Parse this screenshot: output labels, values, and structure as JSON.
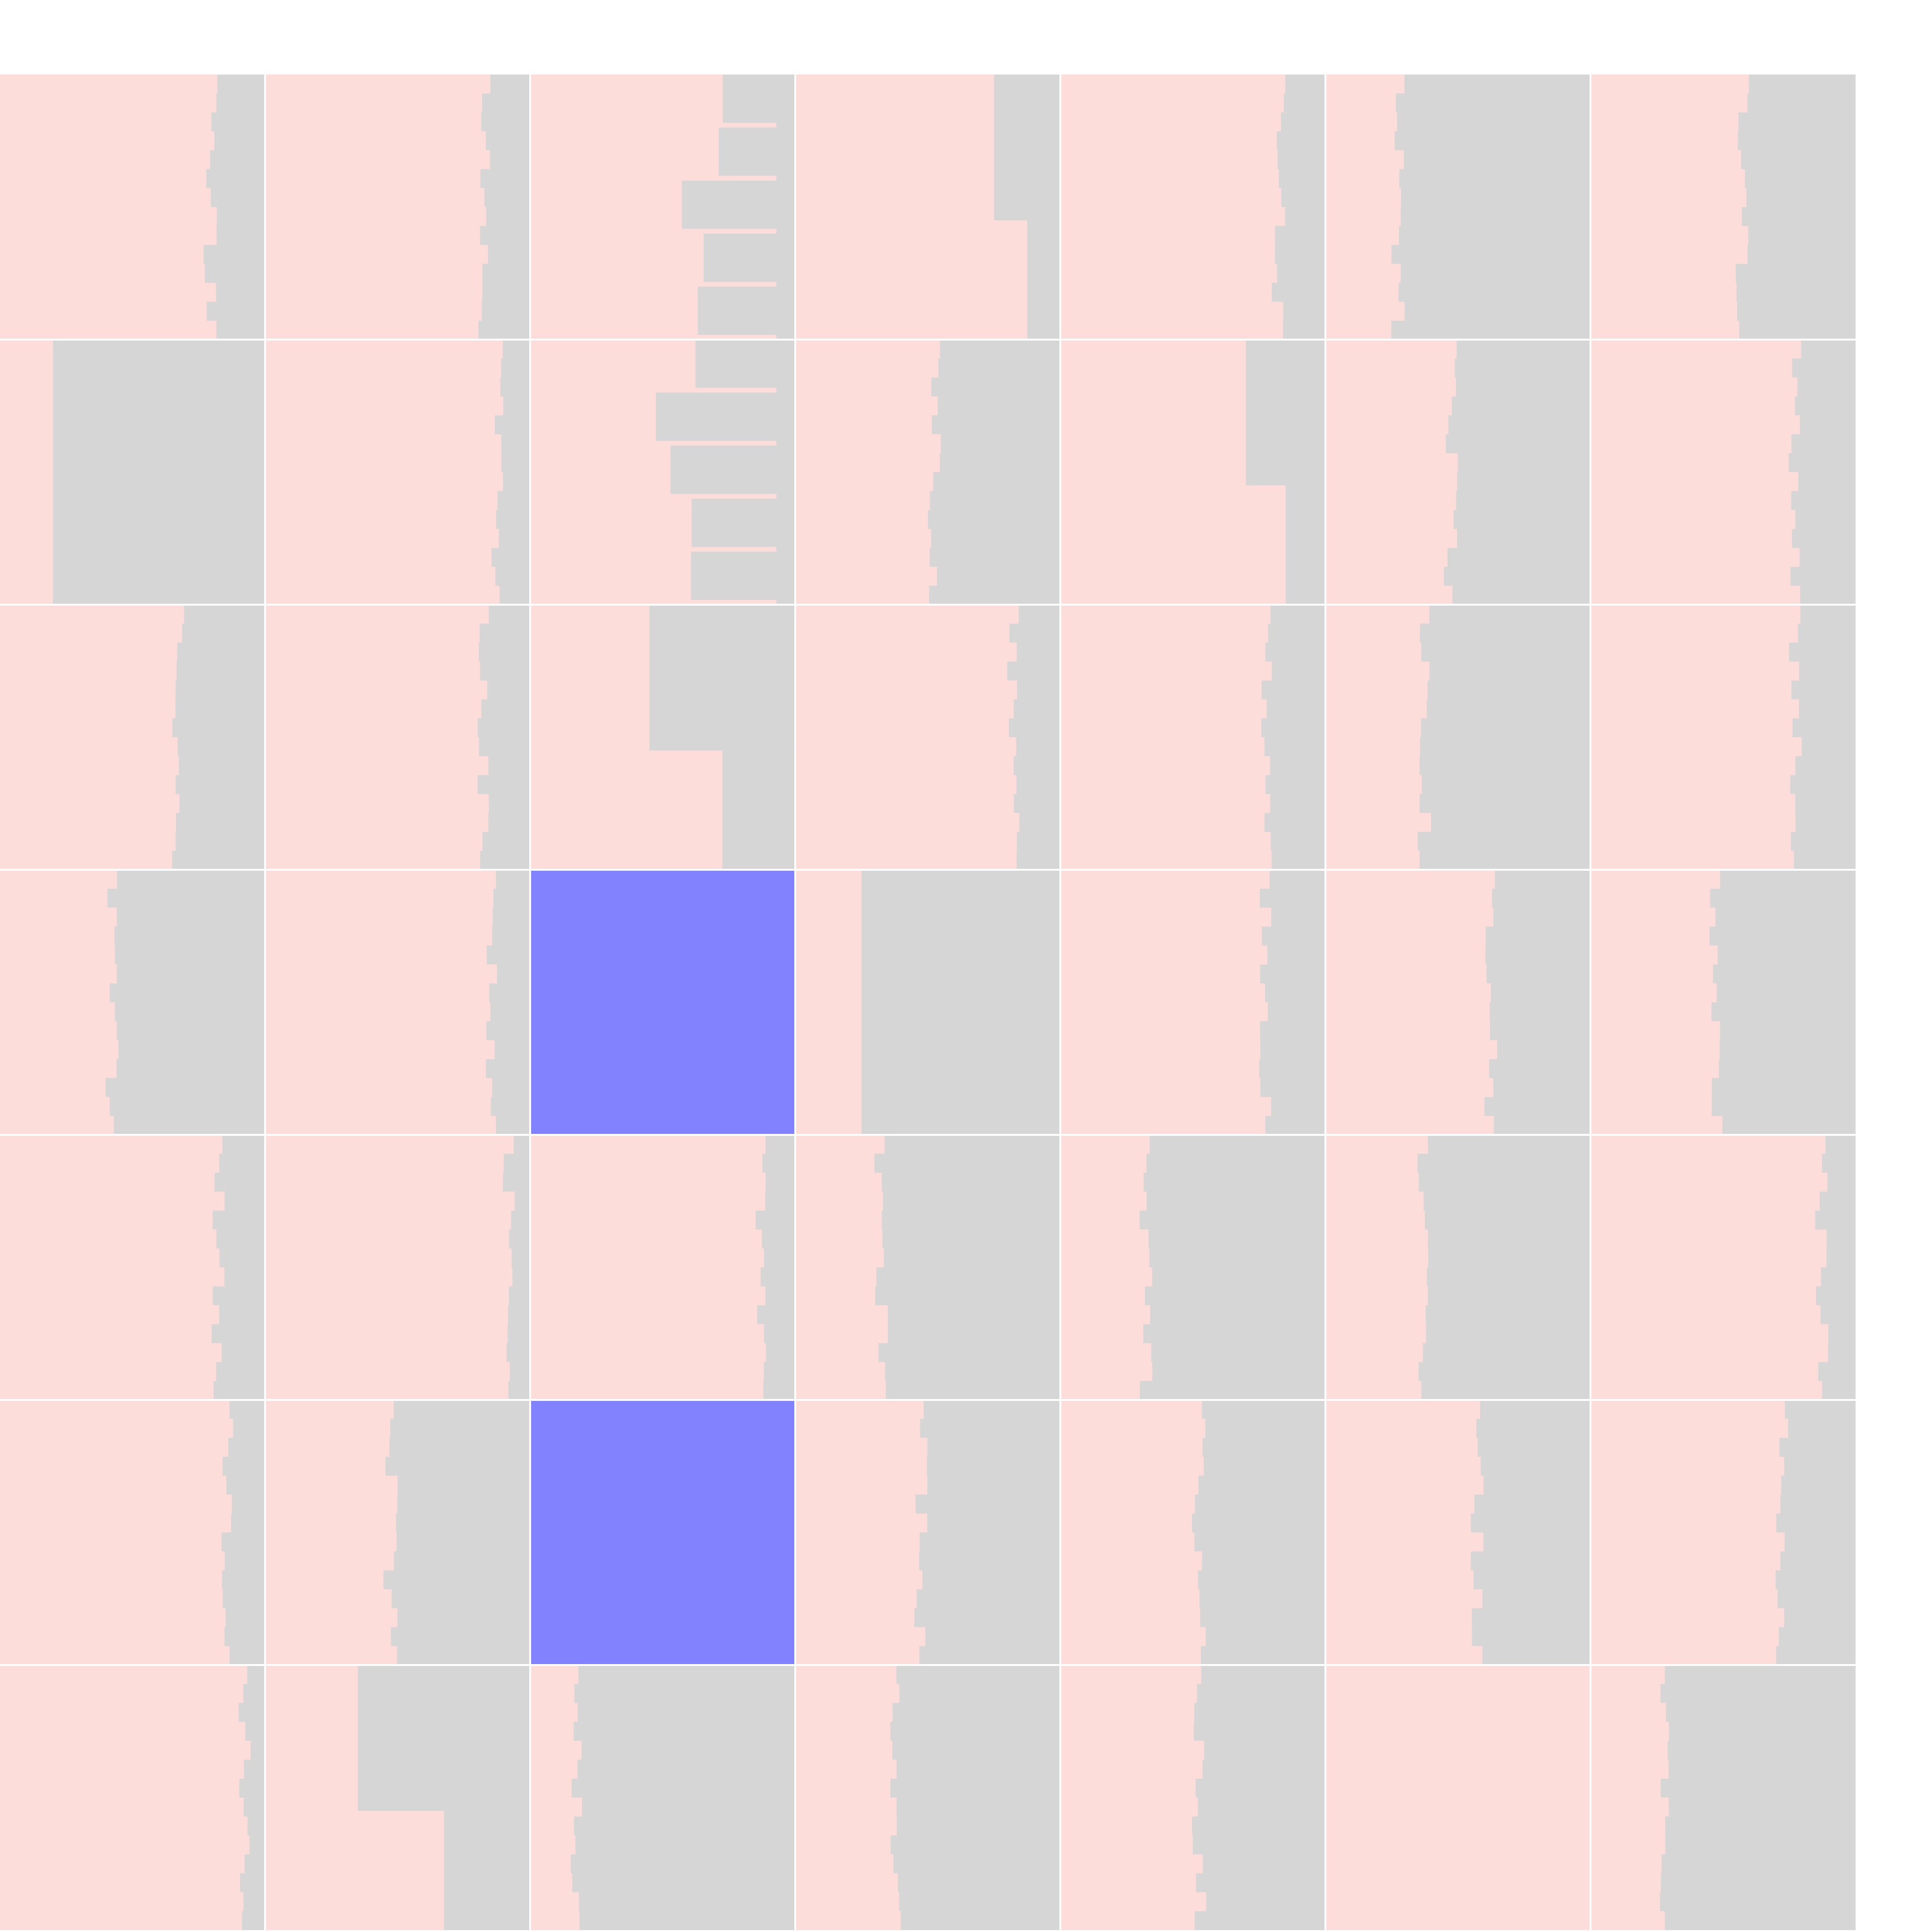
{
  "colors": {
    "background": "#ffffff",
    "tile_base": "#fdddda",
    "tile_fill": "#d6d6d6",
    "highlight": "#8282ff"
  },
  "grid": {
    "columns": 7,
    "rows": 7,
    "tiles": [
      {
        "col": 0,
        "row": 0,
        "gray_fraction": 0.18,
        "pattern": "right-strip"
      },
      {
        "col": 1,
        "row": 0,
        "gray_fraction": 0.15,
        "pattern": "right-strip"
      },
      {
        "col": 2,
        "row": 0,
        "gray_fraction": 0.45,
        "pattern": "right-blocks"
      },
      {
        "col": 3,
        "row": 0,
        "gray_fraction": 0.25,
        "pattern": "top-right"
      },
      {
        "col": 4,
        "row": 0,
        "gray_fraction": 0.15,
        "pattern": "right-strip"
      },
      {
        "col": 5,
        "row": 0,
        "gray_fraction": 0.7,
        "pattern": "right-major"
      },
      {
        "col": 6,
        "row": 0,
        "gray_fraction": 0.4,
        "pattern": "right-major"
      },
      {
        "col": 0,
        "row": 1,
        "gray_fraction": 0.8,
        "pattern": "left-pink"
      },
      {
        "col": 1,
        "row": 1,
        "gray_fraction": 0.1,
        "pattern": "right-strip"
      },
      {
        "col": 2,
        "row": 1,
        "gray_fraction": 0.6,
        "pattern": "right-blocks"
      },
      {
        "col": 3,
        "row": 1,
        "gray_fraction": 0.45,
        "pattern": "right-major"
      },
      {
        "col": 4,
        "row": 1,
        "gray_fraction": 0.3,
        "pattern": "top-right"
      },
      {
        "col": 5,
        "row": 1,
        "gray_fraction": 0.5,
        "pattern": "right-major"
      },
      {
        "col": 6,
        "row": 1,
        "gray_fraction": 0.2,
        "pattern": "right-strip"
      },
      {
        "col": 0,
        "row": 2,
        "gray_fraction": 0.3,
        "pattern": "right-major"
      },
      {
        "col": 1,
        "row": 2,
        "gray_fraction": 0.15,
        "pattern": "right-strip"
      },
      {
        "col": 2,
        "row": 2,
        "gray_fraction": 0.55,
        "pattern": "top-right"
      },
      {
        "col": 3,
        "row": 2,
        "gray_fraction": 0.15,
        "pattern": "right-strip"
      },
      {
        "col": 4,
        "row": 2,
        "gray_fraction": 0.2,
        "pattern": "right-strip"
      },
      {
        "col": 5,
        "row": 2,
        "gray_fraction": 0.6,
        "pattern": "right-major"
      },
      {
        "col": 6,
        "row": 2,
        "gray_fraction": 0.2,
        "pattern": "right-strip"
      },
      {
        "col": 0,
        "row": 3,
        "gray_fraction": 0.55,
        "pattern": "right-major"
      },
      {
        "col": 1,
        "row": 3,
        "gray_fraction": 0.12,
        "pattern": "right-strip"
      },
      {
        "col": 2,
        "row": 3,
        "highlight": true
      },
      {
        "col": 3,
        "row": 3,
        "gray_fraction": 0.75,
        "pattern": "left-pink"
      },
      {
        "col": 4,
        "row": 3,
        "gray_fraction": 0.2,
        "pattern": "right-strip"
      },
      {
        "col": 5,
        "row": 3,
        "gray_fraction": 0.35,
        "pattern": "right-major"
      },
      {
        "col": 6,
        "row": 3,
        "gray_fraction": 0.5,
        "pattern": "right-major"
      },
      {
        "col": 0,
        "row": 4,
        "gray_fraction": 0.15,
        "pattern": "right-strip"
      },
      {
        "col": 1,
        "row": 4,
        "gray_fraction": 0.05,
        "pattern": "right-strip"
      },
      {
        "col": 2,
        "row": 4,
        "gray_fraction": 0.1,
        "pattern": "right-strip"
      },
      {
        "col": 3,
        "row": 4,
        "gray_fraction": 0.65,
        "pattern": "right-major"
      },
      {
        "col": 4,
        "row": 4,
        "gray_fraction": 0.65,
        "pattern": "right-major"
      },
      {
        "col": 5,
        "row": 4,
        "gray_fraction": 0.6,
        "pattern": "right-major"
      },
      {
        "col": 6,
        "row": 4,
        "gray_fraction": 0.1,
        "pattern": "right-strip"
      },
      {
        "col": 0,
        "row": 5,
        "gray_fraction": 0.12,
        "pattern": "right-strip"
      },
      {
        "col": 1,
        "row": 5,
        "gray_fraction": 0.5,
        "pattern": "right-major"
      },
      {
        "col": 2,
        "row": 5,
        "highlight": true
      },
      {
        "col": 3,
        "row": 5,
        "gray_fraction": 0.5,
        "pattern": "right-major"
      },
      {
        "col": 4,
        "row": 5,
        "gray_fraction": 0.45,
        "pattern": "right-major"
      },
      {
        "col": 5,
        "row": 5,
        "gray_fraction": 0.4,
        "pattern": "right-major"
      },
      {
        "col": 6,
        "row": 5,
        "gray_fraction": 0.25,
        "pattern": "right-strip"
      },
      {
        "col": 0,
        "row": 6,
        "gray_fraction": 0.05,
        "pattern": "right-strip"
      },
      {
        "col": 1,
        "row": 6,
        "gray_fraction": 0.65,
        "pattern": "top-right"
      },
      {
        "col": 2,
        "row": 6,
        "gray_fraction": 0.8,
        "pattern": "right-major"
      },
      {
        "col": 3,
        "row": 6,
        "gray_fraction": 0.6,
        "pattern": "right-major"
      },
      {
        "col": 4,
        "row": 6,
        "gray_fraction": 0.45,
        "pattern": "right-major"
      },
      {
        "col": 5,
        "row": 6,
        "gray_fraction": 0.0,
        "pattern": "none"
      },
      {
        "col": 6,
        "row": 6,
        "gray_fraction": 0.7,
        "pattern": "right-major"
      }
    ]
  }
}
